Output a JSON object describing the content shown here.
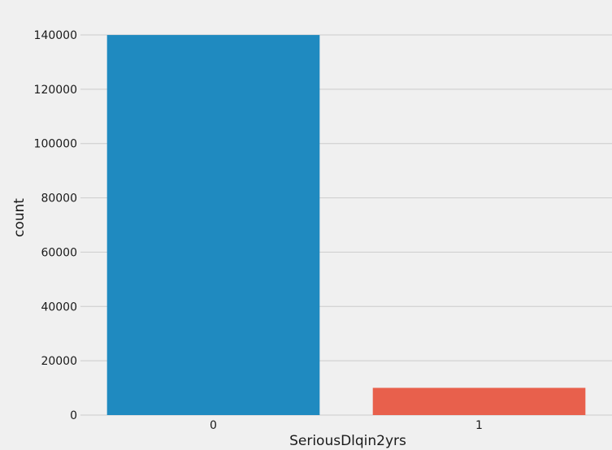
{
  "chart_data": {
    "type": "bar",
    "categories": [
      "0",
      "1"
    ],
    "values": [
      139974,
      10026
    ],
    "colors": [
      "#1f8ac0",
      "#e8604c"
    ],
    "title": "",
    "xlabel": "SeriousDlqin2yrs",
    "ylabel": "count",
    "ylim": [
      0,
      140000
    ],
    "yticks": [
      0,
      20000,
      40000,
      60000,
      80000,
      100000,
      120000,
      140000
    ],
    "ytick_labels": [
      "0",
      "20000",
      "40000",
      "60000",
      "80000",
      "100000",
      "120000",
      "140000"
    ],
    "grid": true,
    "legend": "none"
  }
}
